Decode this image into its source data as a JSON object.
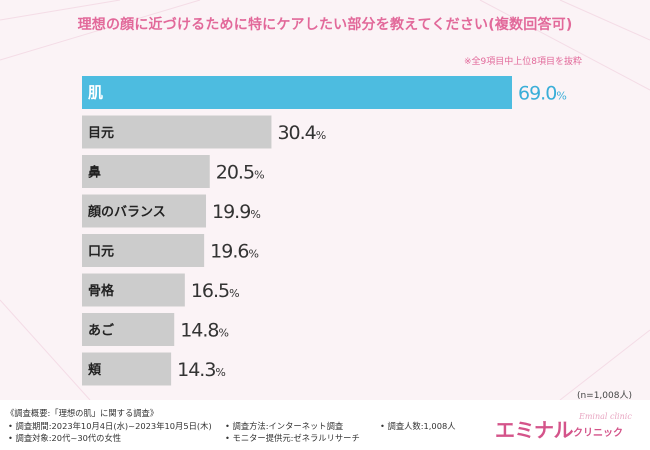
{
  "chart_data": {
    "type": "bar",
    "orientation": "horizontal",
    "title": "理想の顔に近づけるために特にケアしたい部分を教えてください(複数回答可)",
    "note": "※全9項目中上位8項目を抜粋",
    "sample_size": "(n=1,008人)",
    "categories": [
      "肌",
      "目元",
      "鼻",
      "顔のバランス",
      "口元",
      "骨格",
      "あご",
      "頬"
    ],
    "values": [
      69.0,
      30.4,
      20.5,
      19.9,
      19.6,
      16.5,
      14.8,
      14.3
    ],
    "value_labels": [
      "69.0",
      "30.4",
      "20.5",
      "19.9",
      "19.6",
      "16.5",
      "14.8",
      "14.3"
    ],
    "unit": "%",
    "xlim": [
      0,
      69.0
    ],
    "highlight_index": 0,
    "colors": {
      "highlight": "#4dbce0",
      "bar": "#cccccc",
      "label_highlight": "#ffffff",
      "label": "#222222",
      "value": "#333333",
      "value_highlight": "#3aaed8"
    }
  },
  "survey": {
    "overview": "《調査概要:「理想の肌」に関する調査》",
    "period": "• 調査期間:2023年10月4日(水)~2023年10月5日(木)",
    "target": "• 調査対象:20代~30代の女性",
    "method": "• 調査方法:インターネット調査",
    "provider": "• モニター提供元:ゼネラルリサーチ",
    "respondents": "• 調査人数:1,008人"
  },
  "logo": {
    "main": "エミナル",
    "sub": "クリニック",
    "script": "Eminal clinic"
  }
}
